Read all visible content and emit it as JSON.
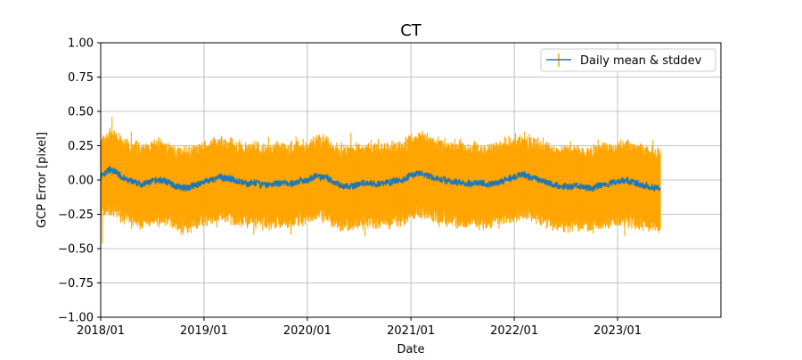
{
  "chart_data": {
    "type": "line",
    "title": "CT",
    "xlabel": "Date",
    "ylabel": "GCP Error [pixel]",
    "x_ticks": [
      "2018/01",
      "2019/01",
      "2020/01",
      "2021/01",
      "2022/01",
      "2023/01"
    ],
    "y_ticks": [
      "1.00",
      "0.75",
      "0.50",
      "0.25",
      "0.00",
      "−0.25",
      "−0.50",
      "−0.75",
      "−1.00"
    ],
    "xlim": [
      "2018-01-01",
      "2024-01-01"
    ],
    "ylim": [
      -1.0,
      1.0
    ],
    "grid": true,
    "legend": {
      "position": "top-right",
      "label": "Daily mean & stddev"
    },
    "series": [
      {
        "name": "Daily mean & stddev",
        "kind": "line-with-errorbars",
        "line_color": "#1f77b4",
        "error_color": "#ffa500",
        "date_range": [
          "2018-01-01",
          "2023-06-01"
        ],
        "mean_points": [
          [
            "2018-01-01",
            0.02
          ],
          [
            "2018-02-01",
            0.08
          ],
          [
            "2018-03-01",
            0.05
          ],
          [
            "2018-04-01",
            0.0
          ],
          [
            "2018-05-01",
            -0.02
          ],
          [
            "2018-06-01",
            -0.03
          ],
          [
            "2018-07-01",
            -0.01
          ],
          [
            "2018-08-01",
            0.0
          ],
          [
            "2018-09-01",
            -0.02
          ],
          [
            "2018-10-01",
            -0.05
          ],
          [
            "2018-11-01",
            -0.06
          ],
          [
            "2018-12-01",
            -0.04
          ],
          [
            "2019-01-01",
            -0.01
          ],
          [
            "2019-02-01",
            0.0
          ],
          [
            "2019-03-01",
            0.02
          ],
          [
            "2019-04-01",
            0.01
          ],
          [
            "2019-05-01",
            -0.01
          ],
          [
            "2019-06-01",
            -0.03
          ],
          [
            "2019-07-01",
            -0.02
          ],
          [
            "2019-08-01",
            -0.04
          ],
          [
            "2019-09-01",
            -0.03
          ],
          [
            "2019-10-01",
            -0.02
          ],
          [
            "2019-11-01",
            -0.03
          ],
          [
            "2019-12-01",
            -0.01
          ],
          [
            "2020-01-01",
            0.0
          ],
          [
            "2020-02-01",
            0.03
          ],
          [
            "2020-03-01",
            0.02
          ],
          [
            "2020-04-01",
            -0.01
          ],
          [
            "2020-05-01",
            -0.04
          ],
          [
            "2020-06-01",
            -0.05
          ],
          [
            "2020-07-01",
            -0.03
          ],
          [
            "2020-08-01",
            -0.02
          ],
          [
            "2020-09-01",
            -0.03
          ],
          [
            "2020-10-01",
            -0.02
          ],
          [
            "2020-11-01",
            -0.01
          ],
          [
            "2020-12-01",
            0.0
          ],
          [
            "2021-01-01",
            0.03
          ],
          [
            "2021-02-01",
            0.05
          ],
          [
            "2021-03-01",
            0.03
          ],
          [
            "2021-04-01",
            0.01
          ],
          [
            "2021-05-01",
            0.0
          ],
          [
            "2021-06-01",
            -0.01
          ],
          [
            "2021-07-01",
            -0.02
          ],
          [
            "2021-08-01",
            -0.03
          ],
          [
            "2021-09-01",
            -0.02
          ],
          [
            "2021-10-01",
            -0.03
          ],
          [
            "2021-11-01",
            -0.02
          ],
          [
            "2021-12-01",
            0.0
          ],
          [
            "2022-01-01",
            0.02
          ],
          [
            "2022-02-01",
            0.04
          ],
          [
            "2022-03-01",
            0.02
          ],
          [
            "2022-04-01",
            0.0
          ],
          [
            "2022-05-01",
            -0.02
          ],
          [
            "2022-06-01",
            -0.04
          ],
          [
            "2022-07-01",
            -0.05
          ],
          [
            "2022-08-01",
            -0.04
          ],
          [
            "2022-09-01",
            -0.05
          ],
          [
            "2022-10-01",
            -0.06
          ],
          [
            "2022-11-01",
            -0.04
          ],
          [
            "2022-12-01",
            -0.03
          ],
          [
            "2023-01-01",
            -0.01
          ],
          [
            "2023-02-01",
            0.0
          ],
          [
            "2023-03-01",
            -0.02
          ],
          [
            "2023-04-01",
            -0.04
          ],
          [
            "2023-05-01",
            -0.05
          ],
          [
            "2023-06-01",
            -0.06
          ]
        ],
        "stddev_upper_approx": 0.25,
        "stddev_lower_approx": -0.3,
        "error_extremes": {
          "max": 0.46,
          "min": -0.46
        }
      }
    ]
  }
}
